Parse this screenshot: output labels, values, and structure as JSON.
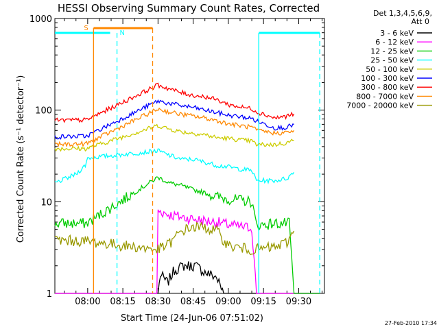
{
  "chart_data": {
    "type": "line",
    "title": "HESSI Observing Summary Count Rates, Corrected",
    "xlabel": "Start Time (24-Jun-06 07:51:02)",
    "ylabel": "Corrected Count Rate (s⁻¹ detector⁻¹)",
    "y_scale": "log",
    "ylim": [
      1,
      1000
    ],
    "y_ticks": [
      {
        "value": 1,
        "label": "1"
      },
      {
        "value": 10,
        "label": "10"
      },
      {
        "value": 100,
        "label": "100"
      },
      {
        "value": 1000,
        "label": "1000"
      }
    ],
    "x_range_minutes": [
      -14,
      101
    ],
    "x_ticks": [
      {
        "value": 0,
        "label": "08:00"
      },
      {
        "value": 15,
        "label": "08:15"
      },
      {
        "value": 30,
        "label": "08:30"
      },
      {
        "value": 45,
        "label": "08:45"
      },
      {
        "value": 60,
        "label": "09:00"
      },
      {
        "value": 75,
        "label": "09:15"
      },
      {
        "value": 90,
        "label": "09:30"
      }
    ],
    "x_tick_note": "x values are minutes after 08:00",
    "legend_title": [
      "Det 1,3,4,5,6,9,",
      "Att 0"
    ],
    "legend_position": "outside-right",
    "series": [
      {
        "name": "3 - 6 keV",
        "color": "#000000",
        "points": [
          [
            -14,
            1
          ],
          [
            -0.5,
            1
          ],
          [
            30,
            1
          ],
          [
            31,
            1.6
          ],
          [
            34,
            1.3
          ],
          [
            37,
            1.8
          ],
          [
            41,
            2
          ],
          [
            46,
            2
          ],
          [
            50,
            1.7
          ],
          [
            55,
            1.5
          ],
          [
            58,
            1
          ],
          [
            99,
            1
          ]
        ]
      },
      {
        "name": "6 - 12 keV",
        "color": "#ff00ff",
        "points": [
          [
            -14,
            1
          ],
          [
            -0.5,
            1
          ],
          [
            29.5,
            1
          ],
          [
            30,
            8
          ],
          [
            35,
            7.2
          ],
          [
            40,
            6.8
          ],
          [
            45,
            6.5
          ],
          [
            50,
            6.2
          ],
          [
            55,
            6
          ],
          [
            60,
            5.6
          ],
          [
            66,
            5.3
          ],
          [
            70,
            5.2
          ],
          [
            72,
            1
          ],
          [
            86,
            1
          ],
          [
            88,
            1
          ],
          [
            99,
            1
          ]
        ]
      },
      {
        "name": "12 - 25 keV",
        "color": "#00cc00",
        "points": [
          [
            -14,
            5.8
          ],
          [
            -0.5,
            5.8
          ],
          [
            30,
            18.5
          ],
          [
            35,
            16
          ],
          [
            40,
            15
          ],
          [
            45,
            13.5
          ],
          [
            50,
            12.5
          ],
          [
            55,
            11.3
          ],
          [
            60,
            10.7
          ],
          [
            66,
            10.3
          ],
          [
            70,
            10
          ],
          [
            72,
            5.5
          ],
          [
            80,
            5.8
          ],
          [
            86,
            5.8
          ],
          [
            88,
            1
          ],
          [
            99,
            1
          ]
        ]
      },
      {
        "name": "25 - 50 keV",
        "color": "#00ffff",
        "points": [
          [
            -14,
            16
          ],
          [
            -9,
            18
          ],
          [
            -5,
            20
          ],
          [
            -1,
            25
          ],
          [
            0,
            30
          ],
          [
            30,
            36
          ],
          [
            35,
            32
          ],
          [
            40,
            29
          ],
          [
            45,
            29
          ],
          [
            50,
            27
          ],
          [
            55,
            25
          ],
          [
            60,
            24
          ],
          [
            66,
            22.5
          ],
          [
            70,
            22
          ],
          [
            72,
            17
          ],
          [
            80,
            17
          ],
          [
            85,
            18
          ],
          [
            88,
            21
          ]
        ]
      },
      {
        "name": "50 - 100 keV",
        "color": "#cccc00",
        "points": [
          [
            -14,
            38
          ],
          [
            -0.5,
            38
          ],
          [
            30,
            68
          ],
          [
            35,
            62
          ],
          [
            40,
            58
          ],
          [
            45,
            56
          ],
          [
            50,
            54
          ],
          [
            55,
            50
          ],
          [
            60,
            49
          ],
          [
            66,
            47
          ],
          [
            70,
            46
          ],
          [
            72,
            42
          ],
          [
            80,
            42
          ],
          [
            85,
            44
          ],
          [
            88,
            47
          ]
        ]
      },
      {
        "name": "100 - 300 keV",
        "color": "#0000ff",
        "points": [
          [
            -14,
            51
          ],
          [
            -0.5,
            52
          ],
          [
            30,
            126
          ],
          [
            35,
            118
          ],
          [
            40,
            112
          ],
          [
            45,
            107
          ],
          [
            50,
            100
          ],
          [
            55,
            94
          ],
          [
            60,
            88
          ],
          [
            66,
            84
          ],
          [
            70,
            81
          ],
          [
            72,
            76
          ],
          [
            80,
            64
          ],
          [
            85,
            65
          ],
          [
            88,
            70
          ]
        ]
      },
      {
        "name": "300 - 800 keV",
        "color": "#ff0000",
        "points": [
          [
            -14,
            77
          ],
          [
            -0.5,
            78
          ],
          [
            30,
            188
          ],
          [
            35,
            170
          ],
          [
            40,
            155
          ],
          [
            45,
            145
          ],
          [
            50,
            140
          ],
          [
            55,
            130
          ],
          [
            60,
            115
          ],
          [
            66,
            107
          ],
          [
            70,
            104
          ],
          [
            72,
            96
          ],
          [
            80,
            82
          ],
          [
            85,
            86
          ],
          [
            88,
            91
          ]
        ]
      },
      {
        "name": "800 - 7000 keV",
        "color": "#ff8800",
        "points": [
          [
            -14,
            42
          ],
          [
            -0.5,
            43
          ],
          [
            30,
            103
          ],
          [
            35,
            95
          ],
          [
            40,
            90
          ],
          [
            45,
            86
          ],
          [
            50,
            82
          ],
          [
            55,
            77
          ],
          [
            60,
            71
          ],
          [
            66,
            67
          ],
          [
            70,
            65
          ],
          [
            72,
            60
          ],
          [
            80,
            56
          ],
          [
            85,
            57
          ],
          [
            88,
            60
          ]
        ]
      },
      {
        "name": "7000 - 20000 keV",
        "color": "#999900",
        "points": [
          [
            -14,
            3.8
          ],
          [
            -0.5,
            3.7
          ],
          [
            30,
            3
          ],
          [
            35,
            3.5
          ],
          [
            40,
            4.8
          ],
          [
            45,
            5.3
          ],
          [
            50,
            5.2
          ],
          [
            55,
            4.8
          ],
          [
            60,
            3.3
          ],
          [
            66,
            3.1
          ],
          [
            70,
            3.0
          ],
          [
            72,
            3.0
          ],
          [
            80,
            3.2
          ],
          [
            85,
            3.6
          ],
          [
            88,
            4.8
          ]
        ]
      }
    ],
    "status_flags": [
      {
        "label": "S",
        "color": "#ff8800"
      },
      {
        "label": "N",
        "color": "#00ffff"
      }
    ],
    "footer_date": "27-Feb-2010 17:34"
  },
  "intervals": {
    "night_cyan_1": [
      -14,
      12.5
    ],
    "night_cyan_2": [
      73,
      99
    ],
    "saa_orange": [
      2.5,
      27.7
    ]
  },
  "interval_lines": {
    "orange_solid": 2.5,
    "cyan_dashed_1": 12.5,
    "orange_dashed": 27.7,
    "cyan_solid": 73,
    "cyan_dashed_2": 99
  }
}
